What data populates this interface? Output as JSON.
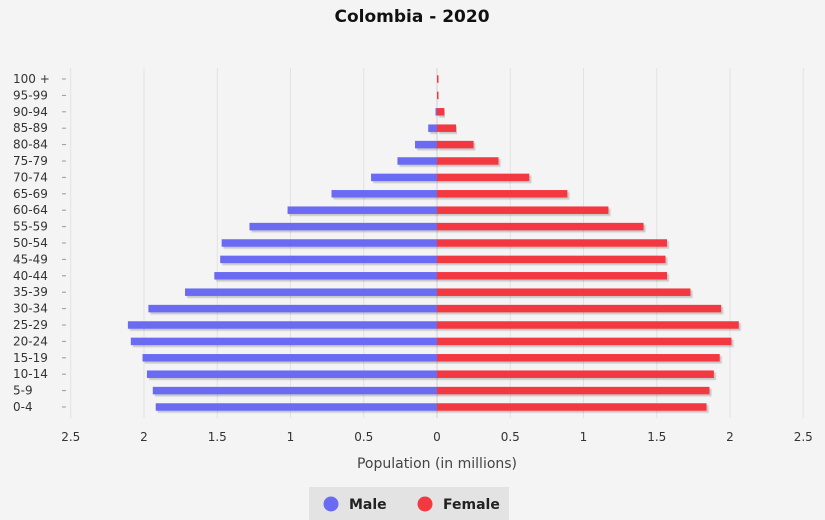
{
  "chart_data": {
    "type": "bar",
    "orientation": "horizontal",
    "title": "Colombia - 2020",
    "xlabel": "Population (in millions)",
    "ylabel": "",
    "xlim": [
      -2.5,
      2.5
    ],
    "x_tick_labels": [
      "2.5",
      "2",
      "1.5",
      "1",
      "0.5",
      "0",
      "0.5",
      "1",
      "1.5",
      "2",
      "2.5"
    ],
    "categories": [
      "100 +",
      "95-99",
      "90-94",
      "85-89",
      "80-84",
      "75-79",
      "70-74",
      "65-69",
      "60-64",
      "55-59",
      "50-54",
      "45-49",
      "40-44",
      "35-39",
      "30-34",
      "25-29",
      "20-24",
      "15-19",
      "10-14",
      "5-9",
      "0-4"
    ],
    "series": [
      {
        "name": "Male",
        "color": "#6b6bf2",
        "values": [
          0.0,
          0.0,
          0.01,
          0.06,
          0.15,
          0.27,
          0.45,
          0.72,
          1.02,
          1.28,
          1.47,
          1.48,
          1.52,
          1.72,
          1.97,
          2.11,
          2.09,
          2.01,
          1.98,
          1.94,
          1.92
        ]
      },
      {
        "name": "Female",
        "color": "#f2393f",
        "values": [
          0.01,
          0.01,
          0.05,
          0.13,
          0.25,
          0.42,
          0.63,
          0.89,
          1.17,
          1.41,
          1.57,
          1.56,
          1.57,
          1.73,
          1.94,
          2.06,
          2.01,
          1.93,
          1.89,
          1.86,
          1.84
        ]
      }
    ],
    "grid": true,
    "legend_position": "bottom"
  },
  "legend": {
    "items": [
      {
        "label": "Male",
        "color": "#6b6bf2"
      },
      {
        "label": "Female",
        "color": "#f2393f"
      }
    ]
  }
}
